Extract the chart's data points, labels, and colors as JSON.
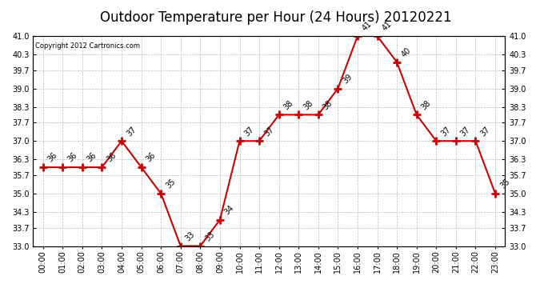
{
  "title": "Outdoor Temperature per Hour (24 Hours) 20120221",
  "copyright_text": "Copyright 2012 Cartronics.com",
  "hours": [
    "00:00",
    "01:00",
    "02:00",
    "03:00",
    "04:00",
    "05:00",
    "06:00",
    "07:00",
    "08:00",
    "09:00",
    "10:00",
    "11:00",
    "12:00",
    "13:00",
    "14:00",
    "15:00",
    "16:00",
    "17:00",
    "18:00",
    "19:00",
    "20:00",
    "21:00",
    "22:00",
    "23:00"
  ],
  "values": [
    36,
    36,
    36,
    36,
    37,
    36,
    35,
    33,
    33,
    34,
    37,
    37,
    38,
    38,
    38,
    39,
    41,
    41,
    40,
    38,
    37,
    37,
    37,
    35
  ],
  "ylim_min": 33.0,
  "ylim_max": 41.0,
  "yticks": [
    33.0,
    33.7,
    34.3,
    35.0,
    35.7,
    36.3,
    37.0,
    37.7,
    38.3,
    39.0,
    39.7,
    40.3,
    41.0
  ],
  "line_color": "#cc0000",
  "marker_color": "#cc0000",
  "bg_color": "#ffffff",
  "grid_color": "#bbbbbb",
  "title_fontsize": 12,
  "label_fontsize": 7,
  "annotation_fontsize": 7,
  "copyright_fontsize": 6
}
